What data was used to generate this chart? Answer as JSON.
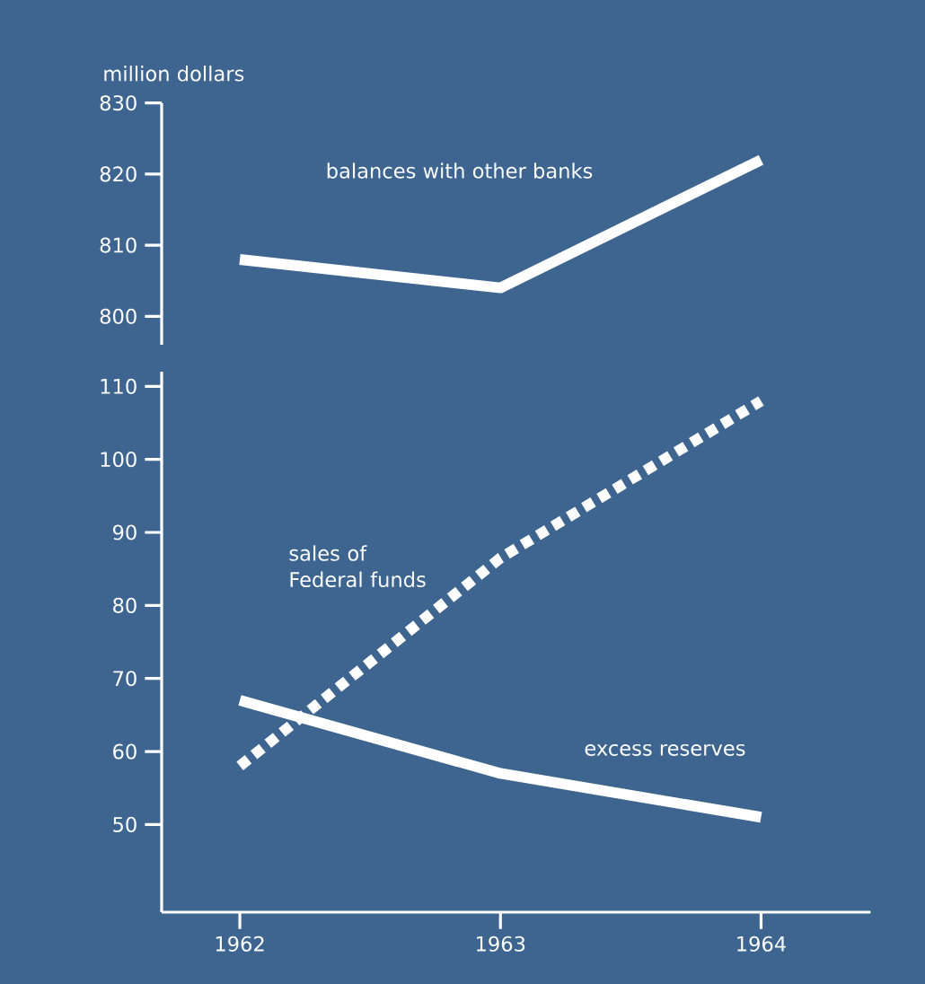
{
  "chart_data": [
    {
      "type": "line",
      "ylabel": "million dollars",
      "categories": [
        "1962",
        "1963",
        "1964"
      ],
      "tick_labels": "y",
      "ylim": [
        796,
        830
      ],
      "yticks": [
        800,
        810,
        820,
        830
      ],
      "grid": false,
      "marker": "none",
      "series": [
        {
          "name": "balances with other banks",
          "color": "#ffffff",
          "line_style": "solid",
          "values": [
            808,
            804,
            822
          ]
        }
      ]
    },
    {
      "type": "line",
      "categories": [
        "1962",
        "1963",
        "1964"
      ],
      "ylim": [
        38,
        112
      ],
      "yticks": [
        50,
        60,
        70,
        80,
        90,
        100,
        110
      ],
      "grid": false,
      "marker": "none",
      "series": [
        {
          "name": "sales of Federal funds",
          "color": "#ffffff",
          "line_style": "dashed",
          "values": [
            58,
            86.5,
            108
          ]
        },
        {
          "name": "excess reserves",
          "color": "#ffffff",
          "line_style": "solid",
          "values": [
            67,
            57,
            51
          ]
        }
      ]
    }
  ]
}
